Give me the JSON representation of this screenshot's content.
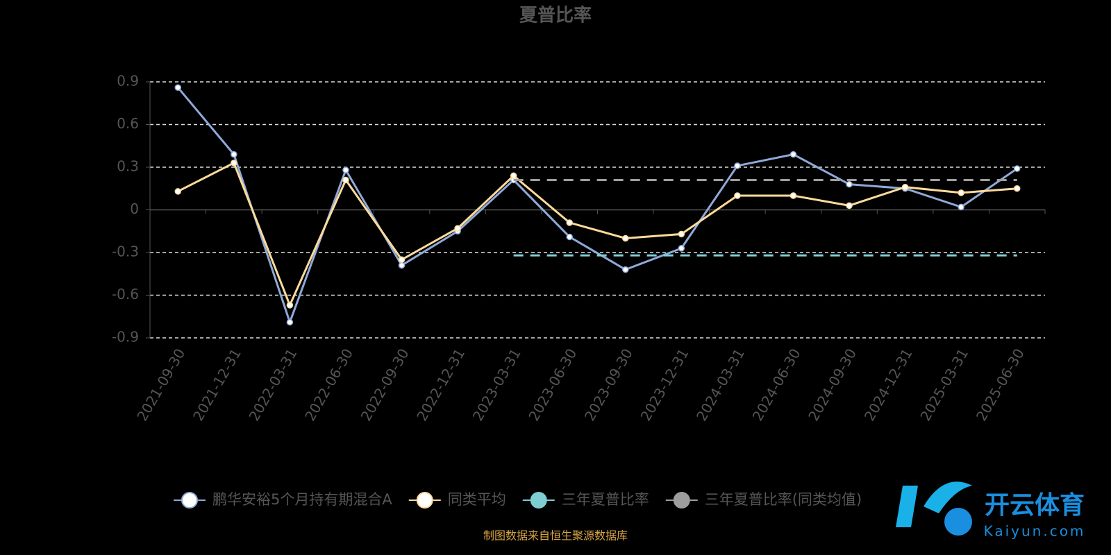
{
  "chart_data": {
    "type": "line",
    "title": "夏普比率",
    "categories": [
      "2021-09-30",
      "2021-12-31",
      "2022-03-31",
      "2022-06-30",
      "2022-09-30",
      "2022-12-31",
      "2023-03-31",
      "2023-06-30",
      "2023-09-30",
      "2023-12-31",
      "2024-03-31",
      "2024-06-30",
      "2024-09-30",
      "2024-12-31",
      "2025-03-31",
      "2025-06-30"
    ],
    "series": [
      {
        "name": "鹏华安裕5个月持有期混合A",
        "color": "#8fa9d8",
        "line_style": "solid",
        "marker": true,
        "values": [
          0.86,
          0.39,
          -0.79,
          0.28,
          -0.39,
          -0.15,
          0.21,
          -0.19,
          -0.42,
          -0.27,
          0.31,
          0.39,
          0.18,
          0.15,
          0.02,
          0.29
        ]
      },
      {
        "name": "同类平均",
        "color": "#fddb9b",
        "line_style": "solid",
        "marker": true,
        "values": [
          0.13,
          0.33,
          -0.67,
          0.21,
          -0.35,
          -0.13,
          0.24,
          -0.09,
          -0.2,
          -0.17,
          0.1,
          0.1,
          0.03,
          0.16,
          0.12,
          0.15
        ]
      },
      {
        "name": "三年夏普比率",
        "color": "#7ecfd4",
        "line_style": "dashed",
        "marker": false,
        "values": [
          null,
          null,
          null,
          null,
          null,
          null,
          -0.32,
          -0.32,
          -0.32,
          -0.32,
          -0.32,
          -0.32,
          -0.32,
          -0.32,
          -0.32,
          -0.32
        ]
      },
      {
        "name": "三年夏普比率(同类均值)",
        "color": "#9e9e9e",
        "line_style": "dashed",
        "marker": false,
        "values": [
          null,
          null,
          null,
          null,
          null,
          null,
          0.21,
          0.21,
          0.21,
          0.21,
          0.21,
          0.21,
          0.21,
          0.21,
          0.21,
          0.21
        ]
      }
    ],
    "ylim": [
      -0.9,
      0.9
    ],
    "yticks": [
      -0.9,
      -0.6,
      -0.3,
      0,
      0.3,
      0.6,
      0.9
    ],
    "grid": true,
    "source": "制图数据来自恒生聚源数据库"
  },
  "watermark": {
    "brand": "开云体育",
    "site": "Kaiyun.com"
  }
}
